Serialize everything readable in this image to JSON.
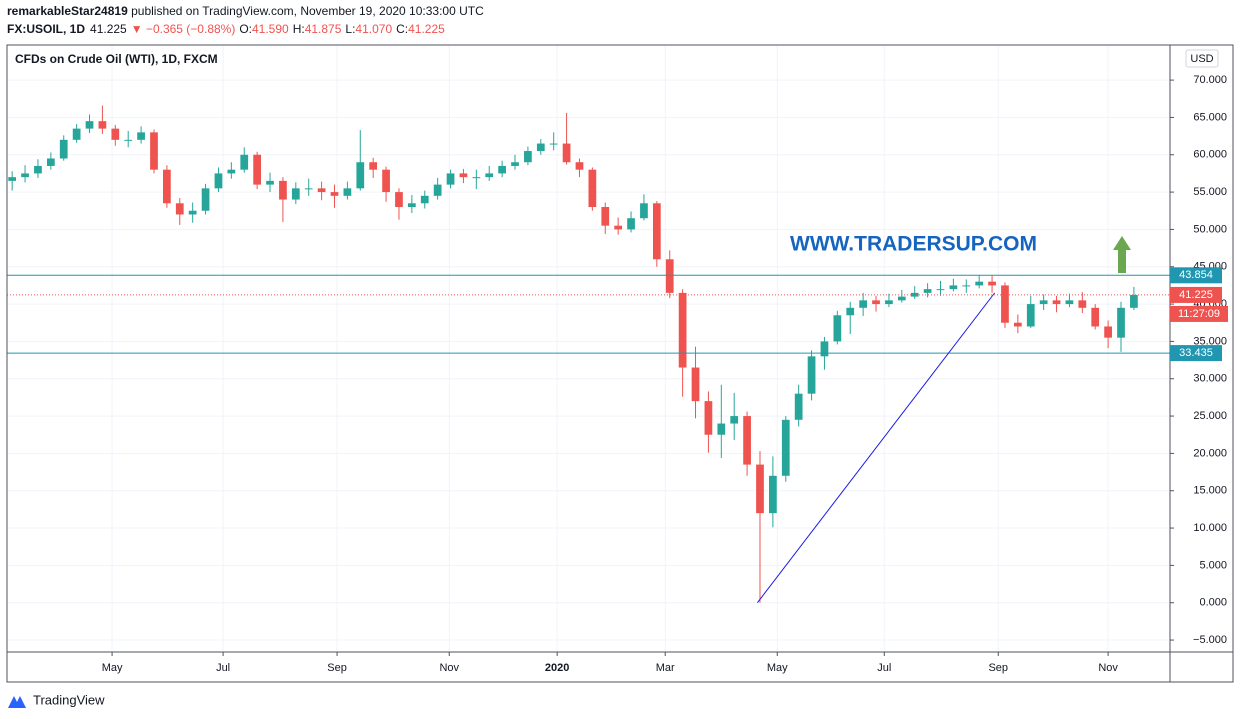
{
  "header": {
    "author": "remarkableStar24819",
    "published": " published on TradingView.com, November 19, 2020 10:33:00 UTC",
    "symbol": "FX:USOIL, 1D",
    "price": "41.225",
    "change": "▼ −0.365 (−0.88%)",
    "ohlc": [
      {
        "label": "O:",
        "value": "41.590"
      },
      {
        "label": "H:",
        "value": "41.875"
      },
      {
        "label": "L:",
        "value": "41.070"
      },
      {
        "label": "C:",
        "value": "41.225"
      }
    ]
  },
  "footer": "TradingView",
  "chart_data": {
    "type": "candlestick",
    "title": "CFDs on Crude Oil (WTI), 1D, FXCM",
    "currency": "USD",
    "up_color": "#26a69a",
    "down_color": "#ef5350",
    "x": [
      0,
      1,
      2,
      3,
      4,
      5,
      6,
      7,
      8,
      9,
      10,
      11,
      12,
      13,
      14,
      15,
      16,
      17,
      18,
      19,
      20,
      21,
      22,
      23,
      24,
      25,
      26,
      27,
      28,
      29,
      30,
      31,
      32,
      33,
      34,
      35,
      36,
      37,
      38,
      39,
      40,
      41,
      42,
      43,
      44,
      45,
      46,
      47,
      48,
      49,
      50,
      51,
      52,
      53,
      54,
      55,
      56,
      57,
      58,
      59,
      60,
      61,
      62,
      63,
      64,
      65,
      66,
      67,
      68,
      69,
      70,
      71,
      72,
      73,
      74,
      75,
      76,
      77,
      78,
      79,
      80,
      81,
      82,
      83,
      84,
      85,
      86,
      87
    ],
    "open": [
      56.5,
      57.0,
      57.5,
      58.5,
      59.5,
      62.0,
      63.5,
      64.5,
      63.5,
      62.0,
      62.0,
      63.0,
      58.0,
      53.5,
      52.0,
      52.5,
      55.5,
      57.5,
      58.0,
      60.0,
      56.0,
      56.5,
      54.0,
      55.5,
      55.5,
      55.0,
      54.5,
      55.5,
      59.0,
      58.0,
      55.0,
      53.0,
      53.5,
      54.5,
      56.0,
      57.5,
      57.0,
      57.0,
      57.5,
      58.5,
      59.0,
      60.5,
      61.5,
      61.5,
      59.0,
      58.0,
      53.0,
      50.5,
      50.0,
      51.5,
      53.5,
      46.0,
      41.5,
      31.5,
      27.0,
      22.5,
      24.0,
      25.0,
      18.5,
      12.0,
      17.0,
      24.5,
      28.0,
      33.0,
      35.0,
      38.5,
      39.5,
      40.5,
      40.0,
      40.5,
      41.0,
      41.5,
      42.0,
      42.0,
      42.5,
      42.5,
      43.0,
      42.5,
      37.5,
      37.0,
      40.0,
      40.5,
      40.0,
      40.5,
      39.5,
      37.0,
      35.5,
      39.5
    ],
    "high": [
      57.8,
      58.6,
      59.4,
      60.3,
      62.6,
      64.1,
      65.4,
      66.6,
      64.0,
      63.2,
      63.8,
      63.4,
      58.6,
      54.2,
      53.6,
      56.1,
      58.3,
      59.0,
      61.0,
      60.4,
      57.6,
      57.0,
      56.3,
      56.8,
      56.4,
      56.0,
      56.4,
      63.3,
      59.6,
      58.4,
      55.5,
      54.6,
      55.2,
      56.9,
      58.0,
      58.1,
      58.0,
      58.5,
      59.2,
      60.0,
      61.1,
      62.1,
      63.0,
      65.6,
      59.5,
      58.3,
      53.6,
      51.6,
      52.4,
      54.7,
      53.8,
      47.2,
      42.0,
      34.3,
      28.3,
      29.2,
      28.1,
      25.6,
      20.3,
      19.6,
      25.0,
      29.2,
      33.8,
      35.6,
      39.1,
      40.3,
      41.5,
      41.1,
      41.4,
      41.9,
      42.4,
      42.8,
      43.1,
      43.4,
      43.3,
      43.9,
      43.8,
      42.9,
      38.6,
      41.1,
      41.3,
      41.1,
      41.4,
      41.6,
      40.0,
      37.8,
      40.3,
      42.3
    ],
    "low": [
      55.2,
      56.3,
      56.9,
      58.0,
      59.2,
      61.6,
      62.9,
      62.8,
      61.2,
      61.0,
      61.5,
      57.5,
      52.9,
      50.6,
      50.9,
      52.0,
      55.0,
      56.8,
      57.6,
      55.4,
      55.0,
      51.0,
      53.4,
      54.5,
      53.9,
      52.9,
      54.0,
      55.2,
      56.9,
      53.7,
      51.3,
      52.2,
      52.8,
      54.0,
      55.5,
      56.2,
      55.4,
      56.5,
      57.0,
      58.0,
      58.6,
      60.0,
      60.6,
      58.7,
      57.0,
      52.5,
      49.4,
      49.3,
      49.6,
      51.2,
      45.0,
      40.8,
      27.6,
      24.7,
      20.1,
      19.4,
      21.8,
      17.0,
      0.0,
      10.1,
      16.2,
      23.6,
      27.1,
      31.2,
      34.6,
      36.0,
      38.4,
      39.0,
      39.6,
      40.2,
      40.7,
      40.9,
      41.1,
      41.7,
      41.5,
      42.1,
      41.5,
      36.8,
      36.1,
      36.8,
      39.2,
      38.9,
      39.6,
      38.8,
      36.6,
      34.1,
      33.6,
      39.2
    ],
    "close": [
      57.0,
      57.5,
      58.5,
      59.5,
      62.0,
      63.5,
      64.5,
      63.5,
      62.0,
      62.0,
      63.0,
      58.0,
      53.5,
      52.0,
      52.5,
      55.5,
      57.5,
      58.0,
      60.0,
      56.0,
      56.5,
      54.0,
      55.5,
      55.5,
      55.0,
      54.5,
      55.5,
      59.0,
      58.0,
      55.0,
      53.0,
      53.5,
      54.5,
      56.0,
      57.5,
      57.0,
      57.0,
      57.5,
      58.5,
      59.0,
      60.5,
      61.5,
      61.5,
      59.0,
      58.0,
      53.0,
      50.5,
      50.0,
      51.5,
      53.5,
      46.0,
      41.5,
      31.5,
      27.0,
      22.5,
      24.0,
      25.0,
      18.5,
      12.0,
      17.0,
      24.5,
      28.0,
      33.0,
      35.0,
      38.5,
      39.5,
      40.5,
      40.0,
      40.5,
      41.0,
      41.5,
      42.0,
      42.0,
      42.5,
      42.5,
      43.0,
      42.5,
      37.5,
      37.0,
      40.0,
      40.5,
      40.0,
      40.5,
      39.5,
      37.0,
      35.5,
      39.5,
      41.225
    ],
    "xlim": [
      -0.4,
      89.8
    ],
    "ylim": [
      -6.6,
      74.7
    ],
    "xticks": [
      {
        "value": 7.75,
        "label": "May"
      },
      {
        "value": 16.36,
        "label": "Jul"
      },
      {
        "value": 25.2,
        "label": "Sep"
      },
      {
        "value": 33.9,
        "label": "Nov"
      },
      {
        "value": 42.27,
        "label": "2020"
      },
      {
        "value": 50.65,
        "label": "Mar"
      },
      {
        "value": 59.34,
        "label": "May"
      },
      {
        "value": 67.64,
        "label": "Jul"
      },
      {
        "value": 76.48,
        "label": "Sep"
      },
      {
        "value": 85.0,
        "label": "Nov"
      }
    ],
    "yticks": [
      {
        "value": 70,
        "label": "70.000"
      },
      {
        "value": 65,
        "label": "65.000"
      },
      {
        "value": 60,
        "label": "60.000"
      },
      {
        "value": 55,
        "label": "55.000"
      },
      {
        "value": 50,
        "label": "50.000"
      },
      {
        "value": 45,
        "label": "45.000"
      },
      {
        "value": 40,
        "label": "40.000"
      },
      {
        "value": 35,
        "label": "35.000"
      },
      {
        "value": 30,
        "label": "30.000"
      },
      {
        "value": 25,
        "label": "25.000"
      },
      {
        "value": 20,
        "label": "20.000"
      },
      {
        "value": 15,
        "label": "15.000"
      },
      {
        "value": 10,
        "label": "10.000"
      },
      {
        "value": 5,
        "label": "5.000"
      },
      {
        "value": 0,
        "label": "0.000"
      },
      {
        "value": -5,
        "label": "−5.000"
      }
    ],
    "grid": true,
    "levels": [
      {
        "value": 43.854,
        "label": "43.854",
        "color": "#2196b0"
      },
      {
        "value": 33.435,
        "label": "33.435",
        "color": "#2196b0"
      }
    ],
    "last_price": {
      "value": 41.225,
      "label": "41.225",
      "countdown": "11:27:09",
      "color": "#ef5350"
    },
    "trendline": {
      "x": [
        57.8,
        76.2
      ],
      "y": [
        0,
        41.5
      ],
      "color": "#1a1ae6"
    },
    "watermark": "WWW.TRADERSUP.COM"
  }
}
